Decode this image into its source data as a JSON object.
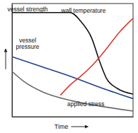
{
  "chart_data": {
    "type": "line",
    "x_label": "Time",
    "xlim": [
      0,
      100
    ],
    "ylim": [
      0,
      100
    ],
    "tick_labels": false,
    "series": [
      {
        "name": "vessel strength",
        "color": "#111111",
        "x": [
          0,
          48,
          57,
          66,
          72,
          78,
          87,
          100
        ],
        "values": [
          92,
          92,
          84,
          69,
          50,
          34,
          25,
          20
        ]
      },
      {
        "name": "vessel pressure",
        "color": "#1f3f8f",
        "x": [
          0,
          25,
          50,
          75,
          100
        ],
        "values": [
          53,
          44,
          35,
          25,
          16
        ]
      },
      {
        "name": "wall temperature",
        "color": "#d63a2a",
        "x": [
          40,
          48,
          57,
          66,
          78,
          89,
          100
        ],
        "values": [
          19,
          28,
          36,
          45,
          60,
          75,
          87
        ]
      },
      {
        "name": "applied stress",
        "color": "#6a6a6a",
        "x": [
          0,
          10,
          25,
          50,
          75,
          100
        ],
        "values": [
          40,
          31,
          22,
          14,
          9,
          5
        ]
      }
    ]
  }
}
